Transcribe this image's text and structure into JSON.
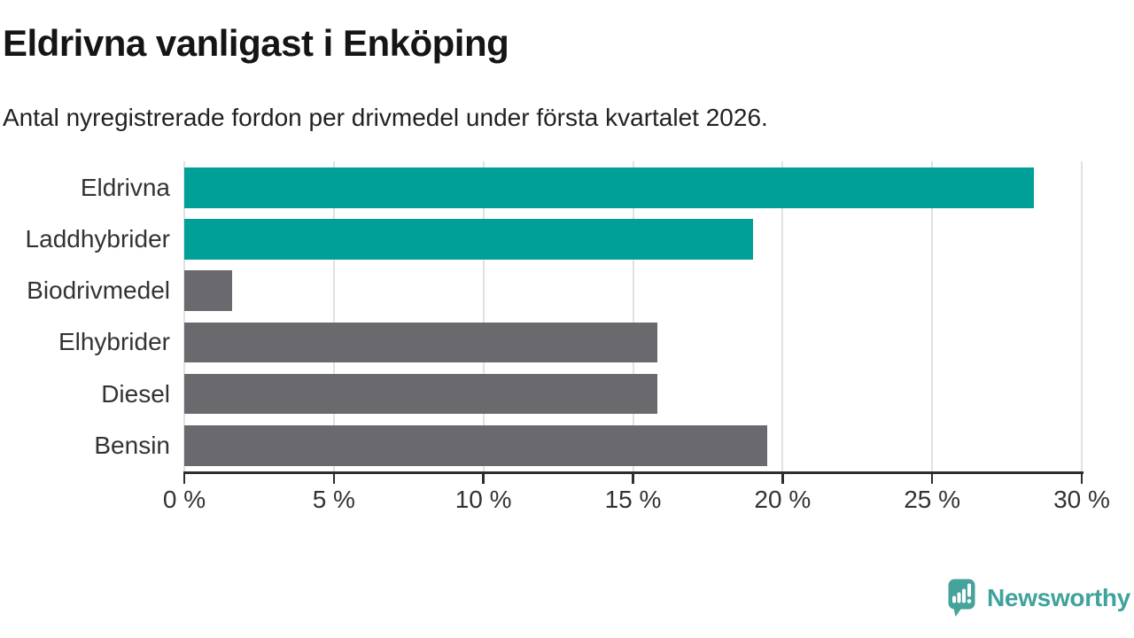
{
  "header": {
    "title": "Eldrivna vanligast i Enköping",
    "subtitle": "Antal nyregistrerade fordon per drivmedel under första kvartalet 2026."
  },
  "chart_data": {
    "type": "bar",
    "orientation": "horizontal",
    "title": "Eldrivna vanligast i Enköping",
    "subtitle": "Antal nyregistrerade fordon per drivmedel under första kvartalet 2026.",
    "categories": [
      "Eldrivna",
      "Laddhybrider",
      "Biodrivmedel",
      "Elhybrider",
      "Diesel",
      "Bensin"
    ],
    "values": [
      28.4,
      19.0,
      1.6,
      15.8,
      15.8,
      19.5
    ],
    "unit": "%",
    "bar_colors": [
      "#00a099",
      "#00a099",
      "#6a6a6e",
      "#6a6a6e",
      "#6a6a6e",
      "#6a6a6e"
    ],
    "xlabel": "",
    "ylabel": "",
    "xlim": [
      0,
      30
    ],
    "x_ticks": [
      0,
      5,
      10,
      15,
      20,
      25,
      30
    ],
    "x_tick_labels": [
      "0 %",
      "5 %",
      "10 %",
      "15 %",
      "20 %",
      "25 %",
      "30 %"
    ],
    "grid": "vertical-only",
    "legend": "none"
  },
  "colors": {
    "accent_teal": "#00a099",
    "neutral_gray": "#6a6a6e",
    "gridline": "#e1e1e1",
    "axis": "#2e2e2e",
    "text": "#333333",
    "logo_teal": "#3fa29b"
  },
  "footer": {
    "brand": "Newsworthy",
    "logo_icon": "newsworthy-speech-bubble-bar-chart-icon"
  }
}
